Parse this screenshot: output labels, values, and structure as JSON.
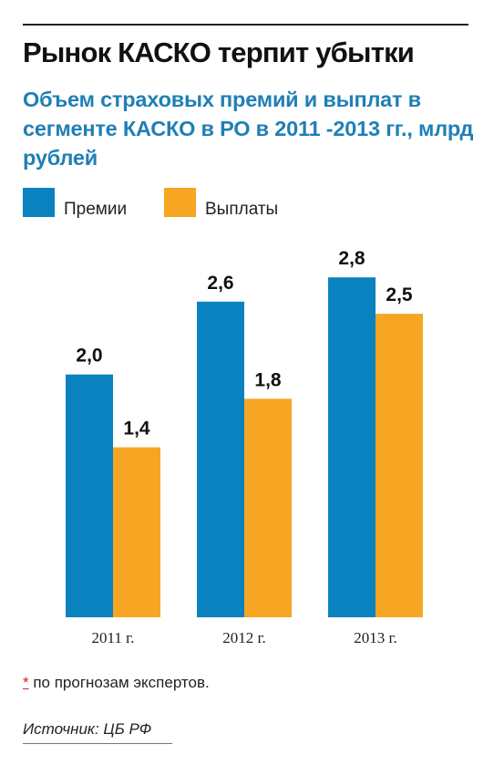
{
  "header": {
    "title": "Рынок КАСКО терпит убытки",
    "subtitle": "Объем страховых премий и выплат в сегменте КАСКО в РО в 2011 -2013 гг., млрд рублей"
  },
  "legend": {
    "premiums": "Премии",
    "payments": "Выплаты"
  },
  "footnote": {
    "marker": "*",
    "text": " по прогнозам экспертов."
  },
  "source": {
    "text": "Источник: ЦБ РФ"
  },
  "colors": {
    "premiums": "#0a82bf",
    "payments": "#f6a623"
  },
  "chart_data": {
    "type": "bar",
    "categories": [
      "2011 г.",
      "2012 г.",
      "2013 г."
    ],
    "series": [
      {
        "name": "Премии",
        "values": [
          2.0,
          2.6,
          2.8
        ],
        "labels": [
          "2,0",
          "2,6",
          "2,8"
        ]
      },
      {
        "name": "Выплаты",
        "values": [
          1.4,
          1.8,
          2.5
        ],
        "labels": [
          "1,4",
          "1,8",
          "2,5"
        ]
      }
    ],
    "title": "Объем страховых премий и выплат в сегменте КАСКО в РО в 2011 -2013 гг., млрд рублей",
    "xlabel": "",
    "ylabel": "",
    "ylim": [
      0,
      3.5
    ],
    "grid": false,
    "legend_position": "top-left"
  }
}
